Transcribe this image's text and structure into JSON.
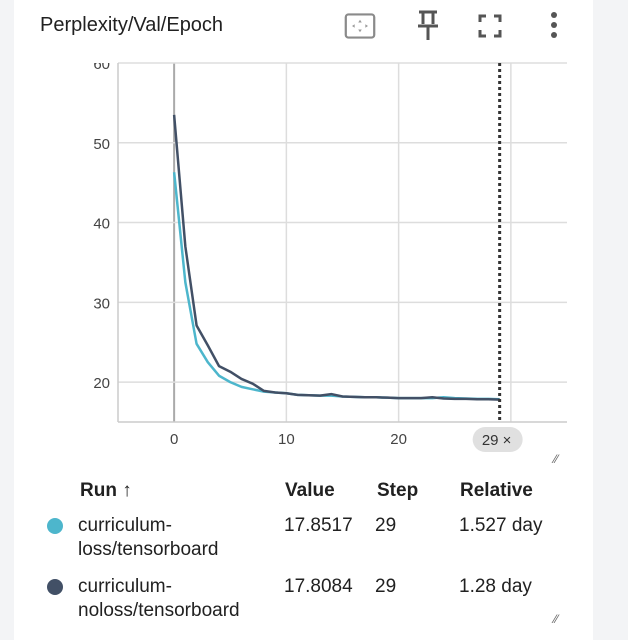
{
  "header": {
    "title": "Perplexity/Val/Epoch"
  },
  "toolbar": {
    "fit_domain": "fit-to-domain-icon",
    "pin": "pin-icon",
    "fullscreen": "fullscreen-icon",
    "more": "more-vert-icon"
  },
  "cursor": {
    "step_label": "29",
    "close": "×"
  },
  "chart_data": {
    "type": "line",
    "title": "Perplexity/Val/Epoch",
    "xlabel": "",
    "ylabel": "",
    "xlim": [
      -5,
      35
    ],
    "ylim": [
      15,
      60
    ],
    "xticks": [
      0,
      10,
      20
    ],
    "yticks": [
      20,
      30,
      40,
      50,
      60
    ],
    "xtick_labels": [
      "0",
      "10",
      "20"
    ],
    "ytick_labels": [
      "20",
      "30",
      "40",
      "50",
      "60"
    ],
    "grid": true,
    "cursor_step": 29,
    "series": [
      {
        "name": "curriculum-loss/tensorboard",
        "color": "#4db6cc",
        "x": [
          0,
          1,
          2,
          3,
          4,
          5,
          6,
          7,
          8,
          9,
          10,
          11,
          12,
          13,
          14,
          15,
          16,
          17,
          18,
          19,
          20,
          21,
          22,
          23,
          24,
          25,
          26,
          27,
          28,
          29
        ],
        "y": [
          46.3,
          32.5,
          24.8,
          22.5,
          20.8,
          20.0,
          19.4,
          19.1,
          18.8,
          18.7,
          18.6,
          18.4,
          18.35,
          18.3,
          18.3,
          18.2,
          18.15,
          18.1,
          18.1,
          18.05,
          18.0,
          18.0,
          18.0,
          18.0,
          18.1,
          18.0,
          17.95,
          17.9,
          17.9,
          17.85
        ]
      },
      {
        "name": "curriculum-noloss/tensorboard",
        "color": "#425066",
        "x": [
          0,
          1,
          2,
          3,
          4,
          5,
          6,
          7,
          8,
          9,
          10,
          11,
          12,
          13,
          14,
          15,
          16,
          17,
          18,
          19,
          20,
          21,
          22,
          23,
          24,
          25,
          26,
          27,
          28,
          29
        ],
        "y": [
          53.5,
          37.0,
          27.1,
          24.6,
          22.0,
          21.3,
          20.4,
          19.8,
          18.9,
          18.7,
          18.6,
          18.4,
          18.35,
          18.3,
          18.5,
          18.2,
          18.15,
          18.1,
          18.1,
          18.05,
          18.0,
          18.0,
          18.0,
          18.1,
          17.95,
          17.9,
          17.9,
          17.85,
          17.85,
          17.81
        ]
      }
    ]
  },
  "table": {
    "headers": {
      "run": "Run ↑",
      "value": "Value",
      "step": "Step",
      "relative": "Relative"
    },
    "rows": [
      {
        "run_line1": "curriculum-",
        "run_line2": "loss/tensorboard",
        "value": "17.8517",
        "step": "29",
        "relative": "1.527 day",
        "color": "#4db6cc"
      },
      {
        "run_line1": "curriculum-",
        "run_line2": "noloss/tensorboard",
        "value": "17.8084",
        "step": "29",
        "relative": "1.28 day",
        "color": "#425066"
      }
    ]
  }
}
